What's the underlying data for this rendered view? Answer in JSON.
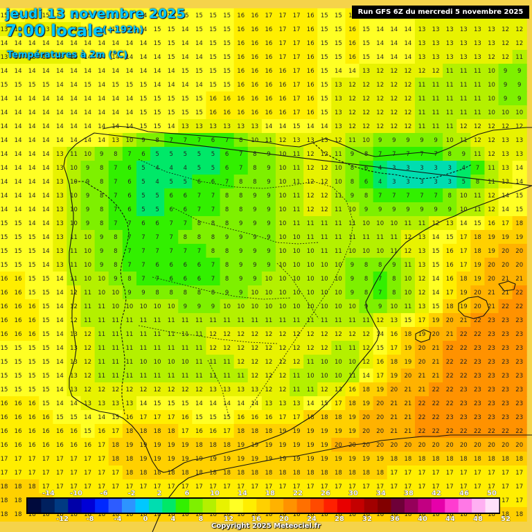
{
  "header": {
    "date_title": "jeudi 13 novembre 2025",
    "time_title": "7:00 locale",
    "lead_time": "(+192h)",
    "subtitle": "Températures à 2m (°C)",
    "run_info": "Run GFS 6Z du mercredi 5 novembre 2025"
  },
  "footer": {
    "copyright": "Copyright 2025 Meteociel.fr"
  },
  "legend": {
    "upper_ticks": [
      "-14",
      "-10",
      "-6",
      "-2",
      "2",
      "6",
      "10",
      "14",
      "18",
      "22",
      "26",
      "30",
      "34",
      "38",
      "42",
      "46",
      "50"
    ],
    "lower_ticks": [
      "-12",
      "-8",
      "-4",
      "0",
      "4",
      "8",
      "12",
      "16",
      "20",
      "24",
      "28",
      "32",
      "36",
      "40",
      "44",
      "48",
      "52"
    ],
    "colors": [
      "#000a3c",
      "#00205e",
      "#003a82",
      "#0000a8",
      "#0000d6",
      "#0028ff",
      "#2d5cff",
      "#2d94ff",
      "#00c8ff",
      "#00ddb0",
      "#00e868",
      "#32f000",
      "#7ef000",
      "#b4f000",
      "#e8f200",
      "#ffff24",
      "#ffee00",
      "#ffd000",
      "#ffb200",
      "#ff9200",
      "#ff7000",
      "#ff4a00",
      "#ff2000",
      "#e80000",
      "#c40000",
      "#a20000",
      "#820000",
      "#6e0038",
      "#96005a",
      "#c20082",
      "#e600aa",
      "#ff3cd0",
      "#ff78e6",
      "#ffb0f2",
      "#ffe0fa"
    ]
  },
  "map": {
    "grid_rows": [
      "15 15 16 15 15 15 15 15 15 15 14 15 15 15 15 15 15 16 16 17 17 17 16 15 15 16 15 14 14 14 13 13 13 13 13 13 13 13",
      "13 13 13 13 13 13 14 14 14 14 14 15 15 14 15 15 15 16 16 16 17 17 16 15 15 16 15 14 14 14 13 13 13 13 13 13 12 12",
      "14 14 14 14 14 14 14 14 14 14 14 15 15 14 14 15 15 16 16 16 17 17 16 15 15 16 15 14 14 14 13 13 13 13 13 13 12 12",
      "13 13 13 13 13 13 14 14 14 14 14 14 15 14 14 15 15 16 16 16 17 17 16 15 15 16 15 14 14 14 13 13 13 13 13 12 12 11",
      "14 14 14 14 14 14 14 14 14 14 14 14 14 15 15 15 15 16 16 16 16 17 16 15 14 14 13 12 12 12 12 12 11 11 11 10 9 9",
      "15 15 15 15 14 14 15 14 15 15 15 14 14 14 14 15 15 16 16 16 16 17 16 15 13 12 12 12 12 12 11 11 11 11 11 10 9 9",
      "14 14 14 14 14 14 14 14 14 14 15 15 15 15 15 16 16 16 16 16 16 17 16 15 13 12 12 12 12 12 11 11 11 11 11 10 9 9",
      "14 14 14 14 14 14 14 14 14 14 15 15 15 15 15 16 16 16 16 16 16 17 16 15 13 12 12 12 12 12 11 11 11 11 11 10 10 10",
      "14 14 14 14 14 14 14 14 14 14 15 15 14 13 13 13 13 13 13 14 14 15 14 14 13 12 12 12 12 12 11 11 11 12 12 12 12 12",
      "14 14 14 14 14 14 14 14 13 10 9 8 7 7 7 6 7 8 10 11 12 13 13 13 12 11 10 9 9 9 9 9 10 11 12 12 13 13",
      "14 14 14 14 13 11 10 9 8 7 6 5 5 5 5 5 6 7 8 9 10 11 12 12 11 9 8 7 7 7 7 7 8 9 11 12 13 13",
      "14 14 14 14 13 10 9 8 7 6 5 4 4 4 5 5 6 7 8 9 10 11 12 12 10 8 6 4 3 3 3 3 3 4 7 11 13 14",
      "14 14 14 14 13 10 9 8 7 6 5 4 5 5 6 6 7 8 8 9 10 11 12 12 10 8 6 4 3 3 3 3 3 5 8 11 13 14",
      "14 14 14 14 13 10 9 8 7 6 5 5 6 6 7 7 8 8 9 9 10 11 12 12 11 9 8 7 7 7 7 7 8 10 11 12 14 15",
      "14 14 14 14 13 10 9 8 7 6 5 5 6 6 7 7 8 8 9 9 10 11 12 12 11 10 9 9 9 9 9 9 9 10 11 12 14 15",
      "15 15 14 14 13 10 9 8 7 7 6 6 7 7 8 8 8 9 9 9 10 11 11 11 11 11 10 10 10 11 11 12 13 14 15 16 17 18",
      "15 15 15 14 13 11 10 9 8 7 7 7 7 8 8 8 9 9 9 9 10 10 11 11 11 11 11 11 11 12 13 14 15 17 18 19 19 19",
      "15 15 15 14 13 11 10 9 8 7 7 7 7 7 7 8 8 9 9 9 10 10 10 11 11 10 10 10 11 12 13 15 16 17 18 19 20 20",
      "15 15 15 14 13 11 10 9 8 7 7 6 6 6 6 7 8 9 9 9 10 10 10 10 10 9 8 8 9 11 13 15 16 17 19 20 20 20",
      "16 16 15 15 14 11 10 10 9 8 7 7 6 6 6 7 8 9 9 10 10 10 10 10 10 9 8 7 8 10 12 14 16 18 19 20 21 21",
      "16 16 15 15 14 12 11 10 10 9 9 8 8 8 8 8 9 9 10 10 10 10 10 10 10 9 8 7 8 10 12 14 17 19 20 21 21 22",
      "16 16 16 15 14 12 11 11 10 10 10 10 10 9 9 9 10 10 10 10 10 10 10 10 10 10 9 9 10 11 13 15 18 19 20 21 22 22",
      "16 16 16 15 14 12 11 11 11 11 11 11 11 11 11 11 11 11 11 11 11 11 11 11 11 11 11 12 13 15 17 19 20 21 22 23 23 23",
      "16 16 16 15 14 13 12 11 11 11 11 11 11 11 11 12 12 12 12 12 12 12 12 12 12 12 12 14 16 18 19 20 21 22 22 23 23 23",
      "15 15 15 15 14 13 12 11 11 11 11 11 11 11 11 12 12 12 12 12 12 12 12 12 11 11 12 15 17 19 20 21 22 22 23 23 23 23",
      "15 15 15 15 14 13 12 11 11 11 10 10 10 10 11 11 11 12 12 12 12 12 11 10 10 10 12 16 18 19 20 21 22 22 23 23 23 23",
      "15 15 15 15 14 13 12 11 11 11 11 11 11 11 11 11 11 11 12 12 12 11 10 10 10 11 14 17 19 20 21 21 22 22 23 23 23 23",
      "15 15 15 15 14 13 12 12 12 12 12 12 12 12 12 13 13 13 13 12 12 11 11 12 13 16 18 19 20 21 21 22 22 23 23 23 23 23",
      "16 16 16 15 14 14 13 13 13 13 14 15 15 15 14 14 14 14 14 13 13 13 14 15 17 18 19 20 21 21 22 22 22 23 23 23 23 23",
      "16 16 16 16 15 15 14 14 15 16 17 17 17 16 15 15 15 16 16 16 17 17 18 18 18 19 20 20 21 21 22 22 23 23 23 23 23 23",
      "16 16 16 16 16 16 15 16 17 18 18 18 18 17 16 16 17 18 18 18 19 19 19 19 19 19 20 20 21 21 22 22 22 22 22 22 22 22",
      "16 16 16 16 16 16 16 17 18 19 19 19 19 19 18 18 18 19 19 19 19 19 19 19 20 20 20 20 20 20 20 20 20 20 20 20 20 20",
      "17 17 17 17 17 17 17 17 18 18 19 19 19 19 19 19 19 19 19 19 19 19 19 19 19 19 19 19 18 18 18 18 18 18 18 18 18 18",
      "17 17 17 17 17 17 17 17 17 18 18 18 18 18 18 18 18 18 18 18 18 18 18 18 18 18 18 18 17 17 17 17 17 17 17 17 17 17",
      "18 18 18 17 17 17 17 17 17 17 17 17 17 17 17 17 17 17 17 17 17 17 17 17 17 17 17 17 17 17 17 17 17 17 17 17 17 17",
      "18 18 18 18 17 17 17 17 17 17 17 17 17 17 17 17 17 17 17 17 17 17 17 17 17 17 17 17 17 17 17 17 17 17 17 17 17 17",
      "18 18 18 18 18 18 18 18 18 18 18 18 18 18 18 18 18 18 18 18 18 18 18 18 18 18 18 18 18 18 18 18 18 18 18 18 18 18"
    ]
  }
}
